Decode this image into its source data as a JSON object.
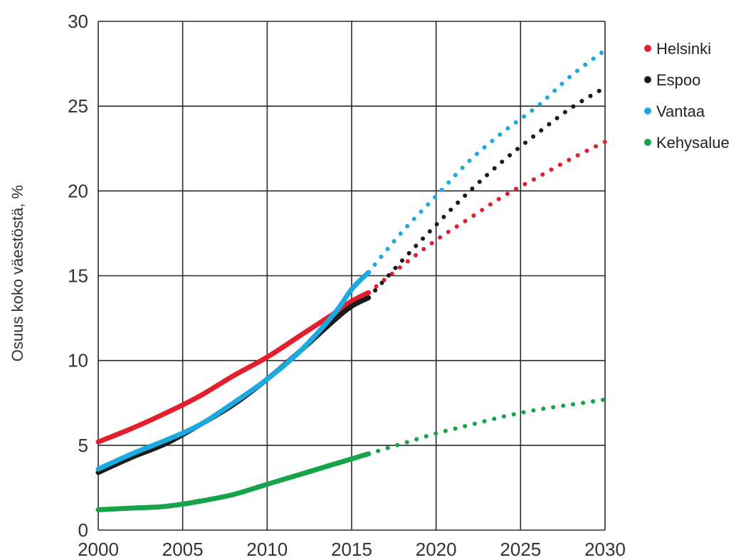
{
  "chart_data": {
    "type": "line",
    "ylabel": "Osuus koko väestöstä, %",
    "xlim": [
      2000,
      2030
    ],
    "ylim": [
      0,
      30
    ],
    "x_ticks": [
      2000,
      2005,
      2010,
      2015,
      2020,
      2025,
      2030
    ],
    "y_ticks": [
      0,
      5,
      10,
      15,
      20,
      25,
      30
    ],
    "grid": true,
    "legend_position": "right",
    "series": [
      {
        "name": "Helsinki",
        "color": "#e31e2d",
        "actual": [
          [
            2000,
            5.2
          ],
          [
            2002,
            6.0
          ],
          [
            2004,
            6.9
          ],
          [
            2006,
            7.9
          ],
          [
            2008,
            9.1
          ],
          [
            2010,
            10.2
          ],
          [
            2012,
            11.5
          ],
          [
            2014,
            12.8
          ],
          [
            2015,
            13.5
          ],
          [
            2016,
            14.0
          ]
        ],
        "forecast": [
          [
            2016,
            14.0
          ],
          [
            2018,
            15.6
          ],
          [
            2020,
            17.1
          ],
          [
            2022,
            18.4
          ],
          [
            2024,
            19.7
          ],
          [
            2026,
            20.8
          ],
          [
            2028,
            21.9
          ],
          [
            2030,
            22.9
          ]
        ]
      },
      {
        "name": "Espoo",
        "color": "#1a1a1a",
        "actual": [
          [
            2000,
            3.4
          ],
          [
            2002,
            4.3
          ],
          [
            2004,
            5.1
          ],
          [
            2006,
            6.2
          ],
          [
            2008,
            7.4
          ],
          [
            2010,
            8.9
          ],
          [
            2012,
            10.6
          ],
          [
            2014,
            12.4
          ],
          [
            2015,
            13.2
          ],
          [
            2016,
            13.7
          ]
        ],
        "forecast": [
          [
            2016,
            13.7
          ],
          [
            2018,
            15.9
          ],
          [
            2020,
            18.0
          ],
          [
            2022,
            20.0
          ],
          [
            2024,
            21.8
          ],
          [
            2026,
            23.4
          ],
          [
            2028,
            24.9
          ],
          [
            2030,
            26.1
          ]
        ]
      },
      {
        "name": "Vantaa",
        "color": "#1ba9e0",
        "actual": [
          [
            2000,
            3.6
          ],
          [
            2002,
            4.5
          ],
          [
            2004,
            5.3
          ],
          [
            2006,
            6.2
          ],
          [
            2008,
            7.5
          ],
          [
            2010,
            8.9
          ],
          [
            2012,
            10.6
          ],
          [
            2014,
            12.8
          ],
          [
            2015,
            14.2
          ],
          [
            2016,
            15.2
          ]
        ],
        "forecast": [
          [
            2016,
            15.2
          ],
          [
            2018,
            17.6
          ],
          [
            2020,
            19.7
          ],
          [
            2022,
            21.8
          ],
          [
            2024,
            23.5
          ],
          [
            2026,
            25.0
          ],
          [
            2028,
            26.8
          ],
          [
            2030,
            28.3
          ]
        ]
      },
      {
        "name": "Kehysalue",
        "color": "#16a34a",
        "actual": [
          [
            2000,
            1.2
          ],
          [
            2002,
            1.3
          ],
          [
            2004,
            1.4
          ],
          [
            2006,
            1.7
          ],
          [
            2008,
            2.1
          ],
          [
            2010,
            2.7
          ],
          [
            2012,
            3.3
          ],
          [
            2014,
            3.9
          ],
          [
            2016,
            4.5
          ]
        ],
        "forecast": [
          [
            2016,
            4.5
          ],
          [
            2018,
            5.1
          ],
          [
            2020,
            5.7
          ],
          [
            2022,
            6.2
          ],
          [
            2024,
            6.7
          ],
          [
            2026,
            7.1
          ],
          [
            2028,
            7.4
          ],
          [
            2030,
            7.7
          ]
        ]
      }
    ]
  }
}
